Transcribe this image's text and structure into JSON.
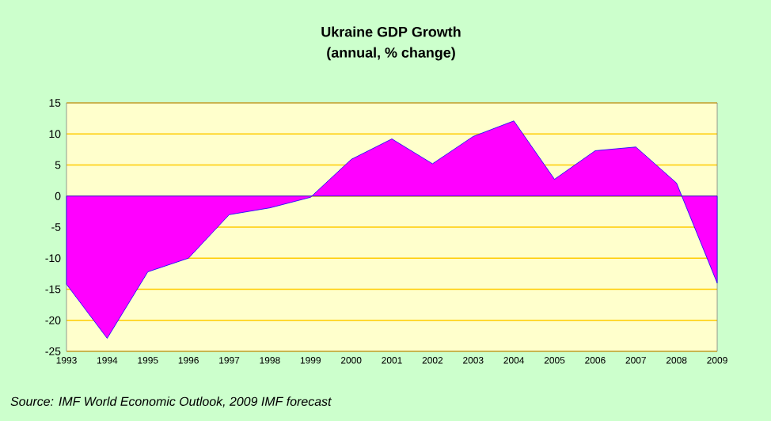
{
  "chart_data": {
    "type": "area",
    "title": "Ukraine GDP Growth",
    "subtitle": "(annual, % change)",
    "categories": [
      "1993",
      "1994",
      "1995",
      "1996",
      "1997",
      "1998",
      "1999",
      "2000",
      "2001",
      "2002",
      "2003",
      "2004",
      "2005",
      "2006",
      "2007",
      "2008",
      "2009"
    ],
    "series": [
      {
        "color": "#ff00ff",
        "values": [
          -14.2,
          -22.9,
          -12.2,
          -10,
          -3,
          -1.9,
          -0.2,
          5.9,
          9.2,
          5.2,
          9.6,
          12.1,
          2.7,
          7.3,
          7.9,
          2.1,
          -14
        ]
      }
    ],
    "ylim": [
      -25,
      15
    ],
    "yticks": [
      -25,
      -20,
      -15,
      -10,
      -5,
      0,
      5,
      10,
      15
    ],
    "grid": "y",
    "annotations": [
      "Source: IMF World Economic Outlook, 2009 IMF forecast"
    ]
  }
}
